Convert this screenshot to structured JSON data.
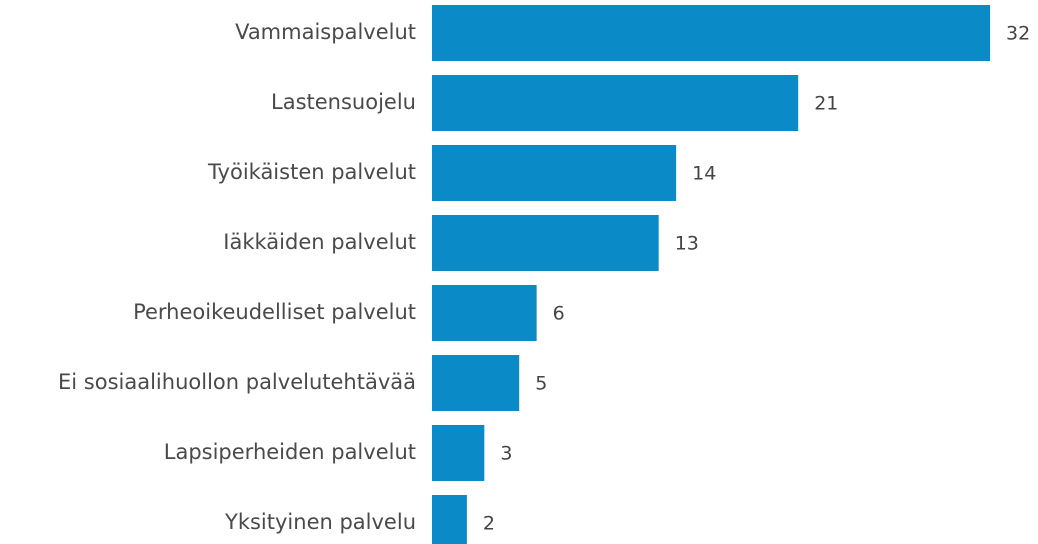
{
  "chart_data": {
    "type": "bar",
    "orientation": "horizontal",
    "categories": [
      "Vammaispalvelut",
      "Lastensuojelu",
      "Työikäisten palvelut",
      "Iäkkäiden palvelut",
      "Perheoikeudelliset palvelut",
      "Ei sosiaalihuollon palvelutehtävää",
      "Lapsiperheiden palvelut",
      "Yksityinen palvelu"
    ],
    "values": [
      32,
      21,
      14,
      13,
      6,
      5,
      3,
      2
    ],
    "color": "#0a8bc7"
  }
}
